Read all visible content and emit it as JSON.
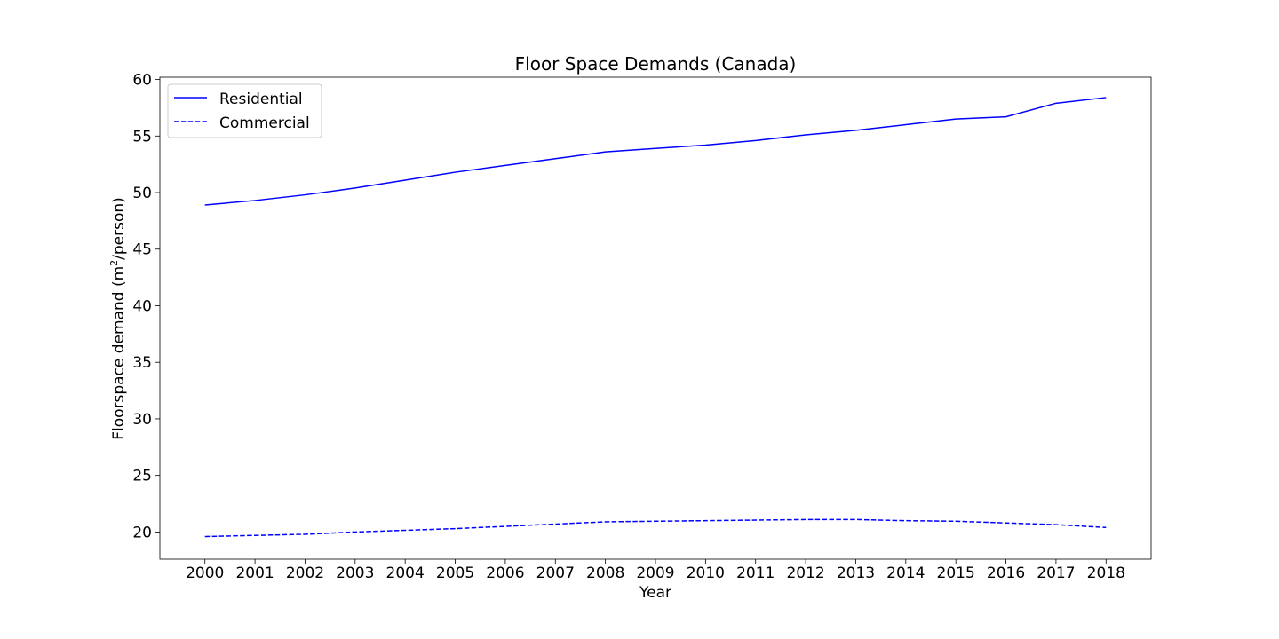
{
  "chart_data": {
    "type": "line",
    "title": "Floor Space Demands (Canada)",
    "xlabel": "Year",
    "ylabel_main": "Floorspace demand (m",
    "ylabel_sup": "2",
    "ylabel_tail": "/person)",
    "x": [
      2000,
      2001,
      2002,
      2003,
      2004,
      2005,
      2006,
      2007,
      2008,
      2009,
      2010,
      2011,
      2012,
      2013,
      2014,
      2015,
      2016,
      2017,
      2018
    ],
    "xlim": [
      1999.1,
      2018.9
    ],
    "ylim": [
      17.6,
      60.2
    ],
    "yticks": [
      20,
      25,
      30,
      35,
      40,
      45,
      50,
      55,
      60
    ],
    "series": [
      {
        "name": "Residential",
        "style": "solid",
        "color": "#0000ff",
        "values": [
          48.9,
          49.3,
          49.8,
          50.4,
          51.1,
          51.8,
          52.4,
          53.0,
          53.6,
          53.9,
          54.2,
          54.6,
          55.1,
          55.5,
          56.0,
          56.5,
          56.7,
          57.9,
          58.4
        ]
      },
      {
        "name": "Commercial",
        "style": "dashed",
        "color": "#0000ff",
        "values": [
          19.6,
          19.7,
          19.8,
          20.0,
          20.15,
          20.3,
          20.5,
          20.7,
          20.9,
          20.95,
          21.0,
          21.05,
          21.1,
          21.1,
          21.0,
          20.95,
          20.8,
          20.65,
          20.4
        ]
      }
    ],
    "grid": false,
    "legend_position": "top-left"
  }
}
